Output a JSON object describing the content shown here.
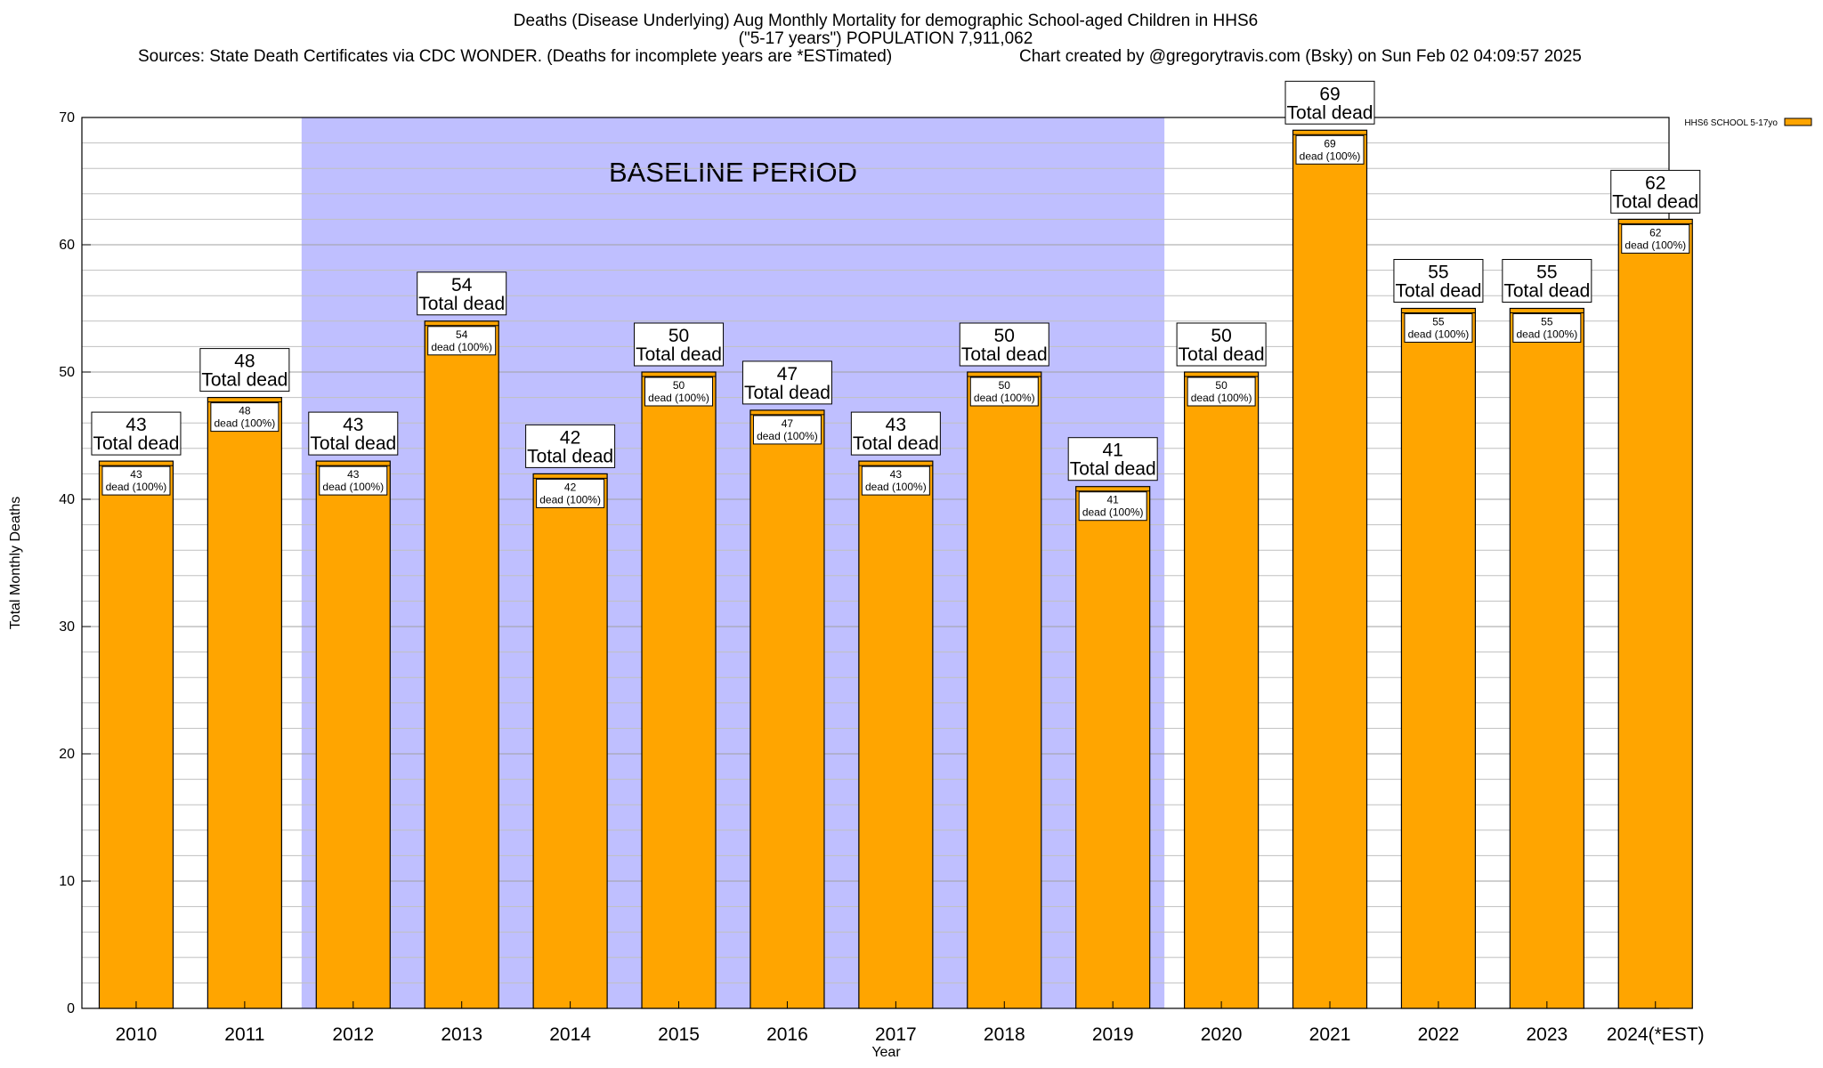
{
  "chart_data": {
    "type": "bar",
    "title_line1": "Deaths (Disease Underlying) Aug Monthly Mortality for demographic School-aged Children in HHS6",
    "title_line2": "(\"5-17 years\") POPULATION 7,911,062",
    "sources": "Sources: State Death Certificates via CDC WONDER. (Deaths for incomplete years are *ESTimated)",
    "credit": "Chart created by @gregorytravis.com (Bsky) on Sun Feb 02 04:09:57 2025",
    "xlabel": "Year",
    "ylabel": "Total Monthly Deaths",
    "ylim": [
      0,
      70
    ],
    "y_ticks": [
      0,
      10,
      20,
      30,
      40,
      50,
      60,
      70
    ],
    "grid": true,
    "legend_position": "top-right",
    "series": [
      {
        "name": "HHS6 SCHOOL 5-17yo",
        "color": "#ffa500",
        "values": [
          43,
          48,
          43,
          54,
          42,
          50,
          47,
          43,
          50,
          41,
          50,
          69,
          55,
          55,
          62
        ]
      }
    ],
    "categories": [
      "2010",
      "2011",
      "2012",
      "2013",
      "2014",
      "2015",
      "2016",
      "2017",
      "2018",
      "2019",
      "2020",
      "2021",
      "2022",
      "2023",
      "2024(*EST)"
    ],
    "baseline": {
      "label": "BASELINE PERIOD",
      "start": "2012",
      "end": "2019",
      "color": "#bfbfff"
    },
    "total_label": "Total dead",
    "segment_label": "dead (100%)"
  }
}
